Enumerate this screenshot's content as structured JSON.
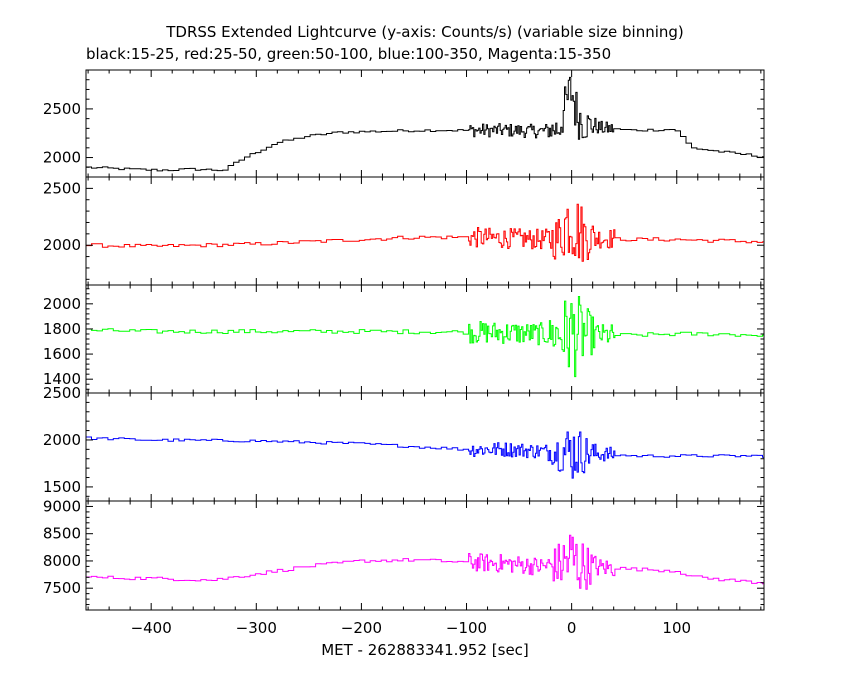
{
  "chart_data": {
    "type": "line",
    "title": "TDRSS Extended Lightcurve (y-axis: Counts/s) (variable size binning)",
    "subtitle": "black:15-25, red:25-50, green:50-100, blue:100-350, Magenta:15-350",
    "xlabel": "MET - 262883341.952 [sec]",
    "xlim": [
      -462,
      183
    ],
    "xticks": [
      -400,
      -300,
      -200,
      -100,
      0,
      100
    ],
    "xtick_labels": [
      "−400",
      "−300",
      "−200",
      "−100",
      "0",
      "100"
    ],
    "grid": false,
    "panels": [
      {
        "name": "black",
        "color": "#000000",
        "ylim": [
          1800,
          2900
        ],
        "yticks": [
          2000,
          2500
        ],
        "ytick_labels": [
          "2000",
          "2500"
        ],
        "x": [
          -462,
          -420,
          -390,
          -360,
          -330,
          -310,
          -280,
          -250,
          -220,
          -180,
          -140,
          -100,
          -60,
          -30,
          -12,
          -5,
          0,
          5,
          12,
          30,
          60,
          100,
          115,
          150,
          183
        ],
        "y": [
          1900,
          1880,
          1870,
          1880,
          1870,
          2000,
          2150,
          2220,
          2260,
          2270,
          2280,
          2280,
          2280,
          2270,
          2300,
          2550,
          2700,
          2450,
          2350,
          2300,
          2280,
          2290,
          2100,
          2050,
          2010
        ],
        "noise_start": -100,
        "noise_end": 40,
        "noise_amp": 70
      },
      {
        "name": "red",
        "color": "#ff0000",
        "ylim": [
          1650,
          2600
        ],
        "yticks": [
          2000,
          2500
        ],
        "ytick_labels": [
          "2000",
          "2500"
        ],
        "x": [
          -462,
          -400,
          -300,
          -200,
          -150,
          -100,
          -60,
          -30,
          -12,
          -5,
          0,
          5,
          12,
          30,
          60,
          100,
          140,
          183
        ],
        "y": [
          2000,
          1990,
          2010,
          2050,
          2070,
          2070,
          2060,
          2050,
          2060,
          2200,
          2250,
          2150,
          2080,
          2060,
          2050,
          2050,
          2040,
          2030
        ],
        "noise_start": -100,
        "noise_end": 40,
        "noise_amp": 90
      },
      {
        "name": "green",
        "color": "#00ff00",
        "ylim": [
          1290,
          2150
        ],
        "yticks": [
          1400,
          1600,
          1800,
          2000
        ],
        "ytick_labels": [
          "1400",
          "1600",
          "1800",
          "2000"
        ],
        "x": [
          -462,
          -400,
          -300,
          -200,
          -100,
          -60,
          -30,
          -12,
          -5,
          0,
          5,
          12,
          30,
          60,
          100,
          140,
          183
        ],
        "y": [
          1790,
          1780,
          1780,
          1780,
          1775,
          1770,
          1760,
          1760,
          1760,
          1760,
          1760,
          1760,
          1750,
          1750,
          1760,
          1760,
          1750
        ],
        "noise_start": -100,
        "noise_end": 40,
        "noise_amp": 90
      },
      {
        "name": "blue",
        "color": "#0000ff",
        "ylim": [
          1350,
          2500
        ],
        "yticks": [
          1500,
          2000,
          2500
        ],
        "ytick_labels": [
          "1500",
          "2000",
          "2500"
        ],
        "x": [
          -462,
          -400,
          -300,
          -200,
          -150,
          -100,
          -60,
          -30,
          -12,
          -5,
          0,
          5,
          12,
          30,
          60,
          100,
          140,
          183
        ],
        "y": [
          2020,
          2000,
          1990,
          1960,
          1930,
          1900,
          1900,
          1880,
          1880,
          1880,
          1880,
          1880,
          1860,
          1850,
          1830,
          1830,
          1830,
          1830
        ],
        "noise_start": -100,
        "noise_end": 40,
        "noise_amp": 80
      },
      {
        "name": "magenta",
        "color": "#ff00ff",
        "ylim": [
          7100,
          9100
        ],
        "yticks": [
          7500,
          8000,
          8500,
          9000
        ],
        "ytick_labels": [
          "7500",
          "8000",
          "8500",
          "9000"
        ],
        "x": [
          -462,
          -400,
          -340,
          -300,
          -250,
          -200,
          -150,
          -100,
          -60,
          -30,
          -12,
          -5,
          0,
          5,
          12,
          30,
          60,
          100,
          120,
          150,
          183
        ],
        "y": [
          7700,
          7680,
          7650,
          7760,
          7900,
          8000,
          8020,
          7980,
          7950,
          7900,
          7920,
          8000,
          8050,
          7950,
          7900,
          7880,
          7850,
          7820,
          7700,
          7650,
          7600
        ],
        "noise_start": -100,
        "noise_end": 40,
        "noise_amp": 170
      }
    ]
  }
}
